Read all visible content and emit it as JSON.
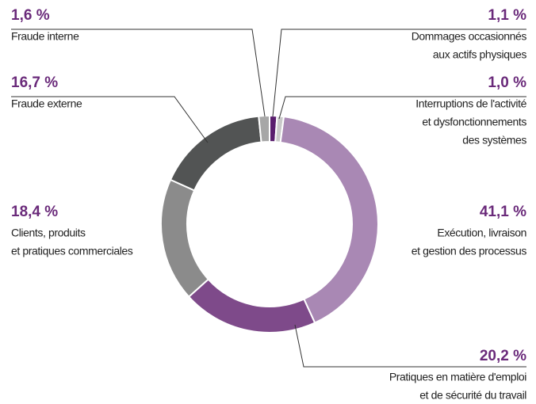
{
  "chart_data": {
    "type": "donut",
    "categories": [
      [
        "Dommages occasionnés",
        "aux actifs physiques"
      ],
      [
        "Interruptions de l'activité",
        "et dysfonctionnements",
        "des systèmes"
      ],
      [
        "Exécution, livraison",
        "et gestion des processus"
      ],
      [
        "Pratiques en matière d'emploi",
        "et de sécurité du travail"
      ],
      [
        "Clients, produits",
        "et pratiques commerciales"
      ],
      [
        "Fraude externe"
      ],
      [
        "Fraude interne"
      ]
    ],
    "values": [
      1.1,
      1.0,
      41.1,
      20.2,
      18.4,
      16.7,
      1.6
    ],
    "value_labels": [
      "1,1 %",
      "1,0 %",
      "41,1 %",
      "20,2 %",
      "18,4 %",
      "16,7 %",
      "1,6 %"
    ],
    "colors": [
      "#5a1e6e",
      "#c9c9c9",
      "#a988b4",
      "#7e4a8a",
      "#8b8b8b",
      "#525454",
      "#a7a7a7"
    ]
  }
}
